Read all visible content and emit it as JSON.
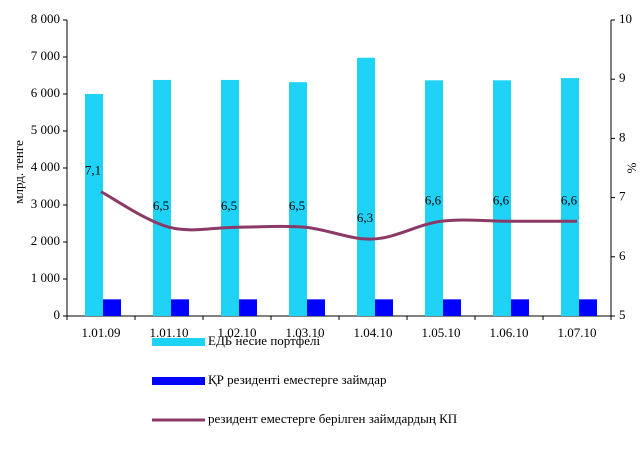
{
  "chart_data": {
    "type": "bar_line",
    "categories": [
      "1.01.09",
      "1.01.10",
      "1.02.10",
      "1.03.10",
      "1.04.10",
      "1.05.10",
      "1.06.10",
      "1.07.10"
    ],
    "series": [
      {
        "name": "ЕДБ несие портфелі",
        "color": "#1fd3f7",
        "type": "bar",
        "values": [
          6000,
          6380,
          6380,
          6320,
          6980,
          6370,
          6370,
          6430
        ]
      },
      {
        "name": "ҚР резиденті еместерге займдар",
        "color": "#0000ff",
        "type": "bar",
        "values": [
          450,
          450,
          450,
          450,
          450,
          450,
          450,
          450
        ]
      },
      {
        "name": "резидент еместерге берілген займдардың КП",
        "color": "#8b3a66",
        "type": "line",
        "axis": "y2",
        "values": [
          7.1,
          6.5,
          6.5,
          6.5,
          6.3,
          6.6,
          6.6,
          6.6
        ],
        "value_labels": [
          "7,1",
          "6,5",
          "6,5",
          "6,5",
          "6,3",
          "6,6",
          "6,6",
          "6,6"
        ]
      }
    ],
    "y_label": "млрд. тенге",
    "y2_label": "%",
    "ylim": [
      0,
      8000
    ],
    "yticks": [
      0,
      {
        "value": 1000,
        "label": "1 000"
      },
      {
        "value": 2000,
        "label": "2 000"
      },
      {
        "value": 3000,
        "label": "3 000"
      },
      {
        "value": 4000,
        "label": "4 000"
      },
      {
        "value": 5000,
        "label": "5 000"
      },
      {
        "value": 6000,
        "label": "6 000"
      },
      {
        "value": 7000,
        "label": "7 000"
      },
      {
        "value": 8000,
        "label": "8 000"
      }
    ],
    "y2lim": [
      5,
      10
    ],
    "y2ticks": [
      5,
      6,
      7,
      8,
      9,
      10
    ],
    "legend": "bottom"
  }
}
